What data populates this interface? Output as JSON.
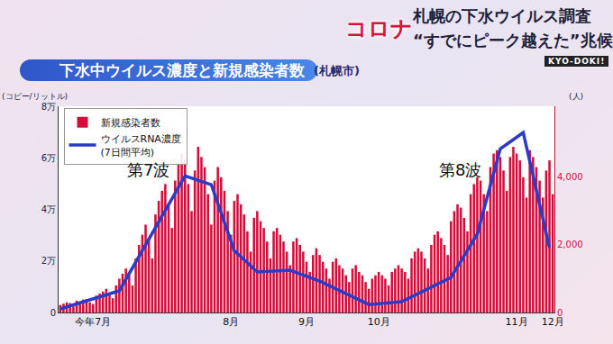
{
  "header": {
    "tag": "コロナ",
    "headline": "札幌の下水ウイルス調査",
    "subheadline": "“すでにピーク越えた”兆候",
    "logo": "KYO-DOKI!"
  },
  "chart_data": {
    "type": "bar",
    "title": "下水中ウイルス濃度と新規感染者数",
    "subtitle": "(札幌市)",
    "ylabel": "(コピー/リットル)",
    "y2label": "(人)",
    "annotations": [
      "第7波",
      "第8波"
    ],
    "categories": [
      null,
      null,
      null,
      null,
      null,
      null,
      null,
      null,
      null,
      null,
      "今年7月",
      null,
      null,
      null,
      null,
      null,
      null,
      null,
      null,
      null,
      null,
      null,
      null,
      null,
      null,
      null,
      null,
      null,
      null,
      null,
      null,
      null,
      null,
      null,
      null,
      null,
      null,
      null,
      null,
      null,
      null,
      null,
      null,
      null,
      null,
      null,
      null,
      null,
      null,
      null,
      null,
      null,
      "8月",
      null,
      null,
      null,
      null,
      null,
      null,
      null,
      null,
      null,
      null,
      null,
      null,
      null,
      null,
      null,
      null,
      null,
      null,
      null,
      null,
      null,
      null,
      "9月",
      null,
      null,
      null,
      null,
      null,
      null,
      null,
      null,
      null,
      null,
      null,
      null,
      null,
      null,
      null,
      null,
      null,
      null,
      null,
      null,
      null,
      "10月",
      null,
      null,
      null,
      null,
      null,
      null,
      null,
      null,
      null,
      null,
      null,
      null,
      null,
      null,
      null,
      null,
      null,
      null,
      null,
      null,
      null,
      null,
      null,
      null,
      null,
      null,
      null,
      null,
      null,
      null,
      null,
      null,
      null,
      null,
      null,
      null,
      null,
      null,
      null,
      null,
      null,
      "11月",
      null,
      null,
      null,
      null,
      null,
      null,
      null,
      null,
      null,
      null,
      "12月"
    ],
    "series": [
      {
        "name": "新規感染者数",
        "type": "bar",
        "color": "#d0103a",
        "axis": "y2",
        "values": [
          220,
          260,
          300,
          280,
          180,
          350,
          330,
          380,
          400,
          300,
          250,
          500,
          560,
          620,
          700,
          520,
          420,
          800,
          1000,
          1150,
          1300,
          1100,
          800,
          1600,
          2000,
          2300,
          2600,
          2200,
          1600,
          2900,
          3300,
          3600,
          3800,
          3200,
          2500,
          3900,
          4400,
          4700,
          4500,
          3800,
          3000,
          4200,
          4900,
          4600,
          4300,
          3500,
          2600,
          3900,
          4300,
          4000,
          3600,
          3000,
          2300,
          3300,
          3500,
          3200,
          2900,
          2400,
          1800,
          2800,
          3000,
          2700,
          2500,
          2100,
          1600,
          2400,
          2500,
          2300,
          2100,
          1800,
          1400,
          2100,
          2200,
          2000,
          1800,
          1500,
          1200,
          1700,
          1900,
          1700,
          1500,
          1300,
          1000,
          1500,
          1600,
          1400,
          1300,
          1100,
          900,
          1300,
          1400,
          1200,
          1100,
          900,
          700,
          1000,
          1100,
          1200,
          1100,
          1000,
          800,
          1200,
          1300,
          1400,
          1300,
          1200,
          1000,
          1600,
          1800,
          1900,
          1800,
          1600,
          1300,
          2000,
          2300,
          2400,
          2200,
          2000,
          1700,
          2700,
          3000,
          3200,
          3100,
          2800,
          2400,
          3500,
          3800,
          4000,
          3900,
          3500,
          3000,
          4300,
          4700,
          4800,
          4600,
          4200,
          3600,
          4600,
          4900,
          4700,
          4500,
          4000,
          3400,
          4800,
          4600,
          4300,
          3900,
          3400,
          4200,
          4500,
          3500
        ]
      },
      {
        "name": "ウイルスRNA濃度(7日間平均)",
        "type": "line",
        "color": "#2b3bc8",
        "axis": "y",
        "x": [
          0,
          18,
          38,
          46,
          53,
          60,
          70,
          79,
          94,
          104,
          119,
          127,
          134,
          141,
          149
        ],
        "values": [
          1400,
          8400,
          53000,
          49600,
          24000,
          15700,
          16400,
          12200,
          3100,
          4200,
          13600,
          30400,
          63500,
          69800,
          25100
        ]
      }
    ],
    "ylim": [
      0,
      80000
    ],
    "yticks": [
      0,
      {
        "value": 20000,
        "label": "2万"
      },
      {
        "value": 40000,
        "label": "4万"
      },
      {
        "value": 60000,
        "label": "6万"
      },
      {
        "value": 80000,
        "label": "8万"
      }
    ],
    "y2lim": [
      0,
      6100
    ],
    "y2ticks": [
      0,
      {
        "value": 2000,
        "label": "2,000"
      },
      {
        "value": 4000,
        "label": "4,000"
      }
    ],
    "grid": false,
    "legend": "upper left"
  }
}
